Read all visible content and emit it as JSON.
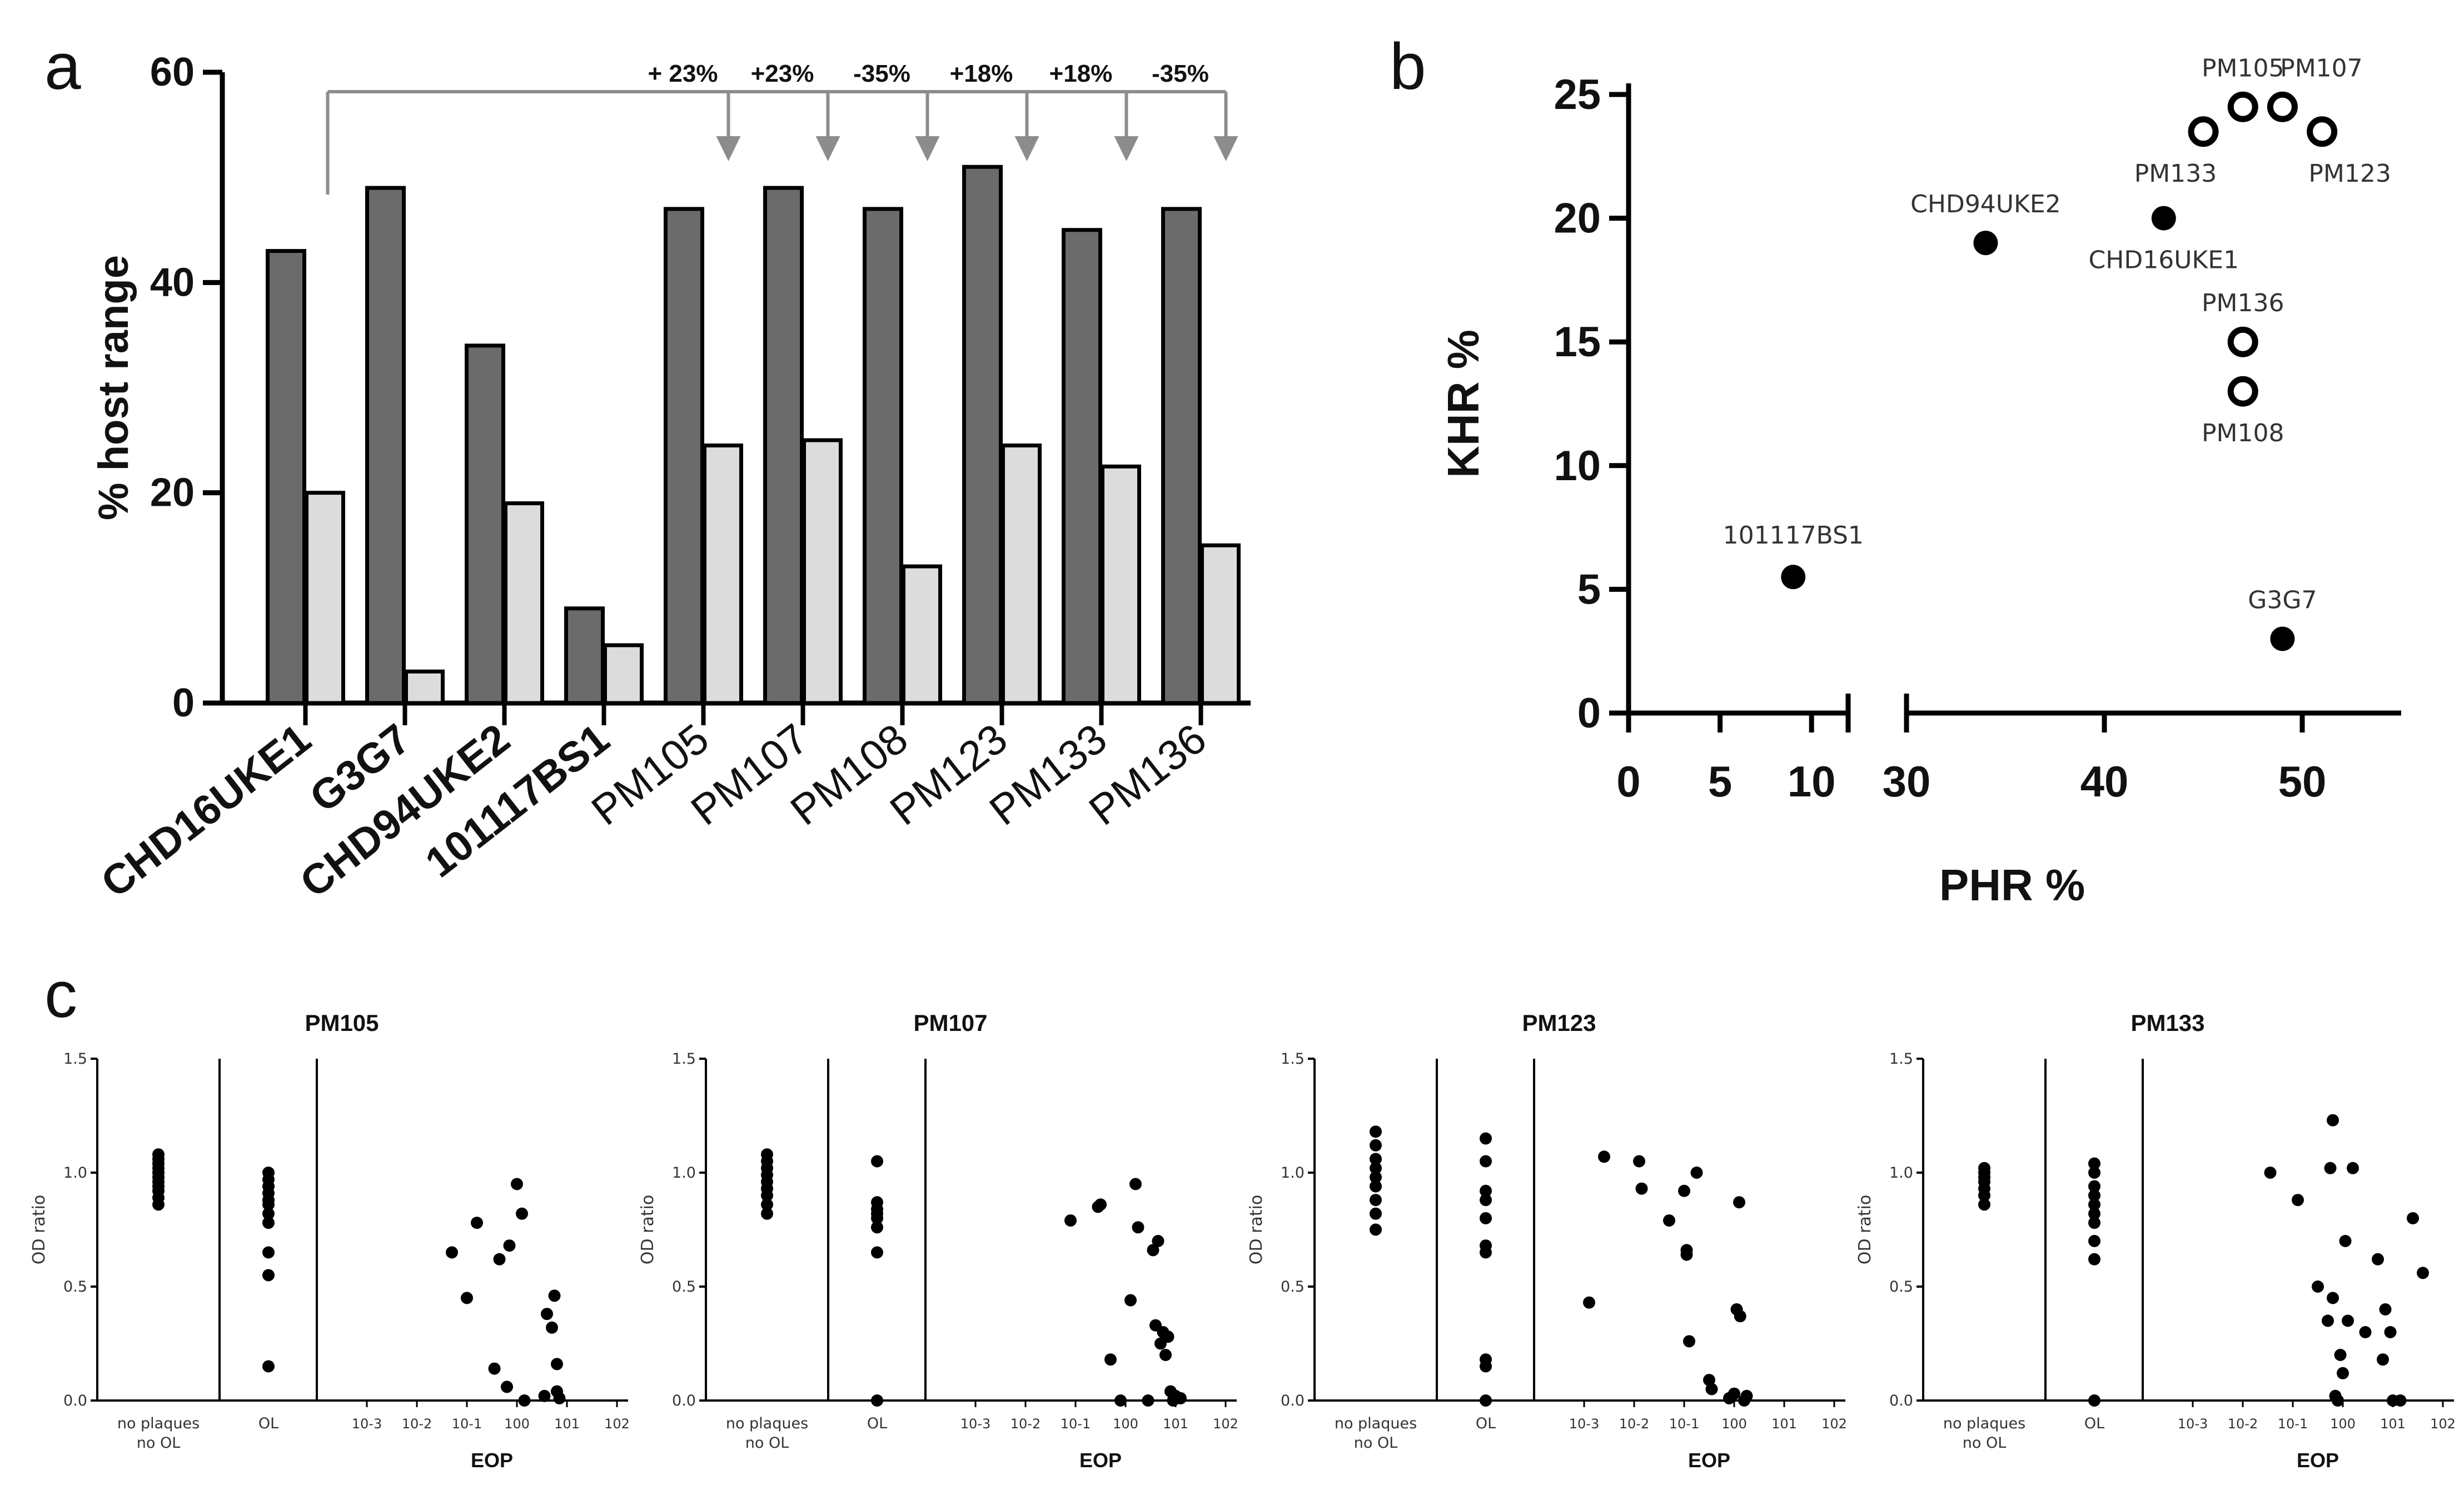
{
  "panel_labels": {
    "a": "a",
    "b": "b",
    "c": "c"
  },
  "colors": {
    "dark_bar": "#6b6b6b",
    "light_bar": "#dcdcdc",
    "arrow": "#8c8c8c",
    "ink": "#000000"
  },
  "chart_data": [
    {
      "id": "a",
      "type": "bar",
      "ylabel": "% host range",
      "ylim": [
        0,
        60
      ],
      "yticks": [
        0,
        20,
        40,
        60
      ],
      "categories": [
        "CHD16UKE1",
        "G3G7",
        "CHD94UKE2",
        "101117BS1",
        "PM105",
        "PM107",
        "PM108",
        "PM123",
        "PM133",
        "PM136"
      ],
      "bold_categories": [
        "CHD16UKE1",
        "G3G7",
        "CHD94UKE2",
        "101117BS1"
      ],
      "series": [
        {
          "values": [
            43,
            49,
            34,
            9,
            47,
            49,
            47,
            51,
            45,
            47
          ]
        },
        {
          "values": [
            20,
            3,
            19,
            5.5,
            24.5,
            25,
            13,
            24.5,
            22.5,
            15
          ]
        }
      ],
      "annotations": [
        "+ 23%",
        "+23%",
        "-35%",
        "+18%",
        "+18%",
        "-35%"
      ]
    },
    {
      "id": "b",
      "type": "scatter",
      "xlabel": "PHR %",
      "ylabel": "KHR %",
      "xticks": [
        0,
        5,
        10,
        30,
        40,
        50
      ],
      "yticks": [
        0,
        5,
        10,
        15,
        20,
        25
      ],
      "x_axis_break": [
        12,
        30
      ],
      "points": [
        {
          "label": "CHD16UKE1",
          "x": 43,
          "y": 20,
          "filled": true
        },
        {
          "label": "CHD94UKE2",
          "x": 34,
          "y": 19,
          "filled": true
        },
        {
          "label": "101117BS1",
          "x": 9,
          "y": 5.5,
          "filled": true
        },
        {
          "label": "G3G7",
          "x": 49,
          "y": 3,
          "filled": true
        },
        {
          "label": "PM105",
          "x": 47,
          "y": 24.5,
          "filled": false
        },
        {
          "label": "PM107",
          "x": 49,
          "y": 24.5,
          "filled": false
        },
        {
          "label": "PM133",
          "x": 45,
          "y": 23.5,
          "filled": false
        },
        {
          "label": "PM123",
          "x": 51,
          "y": 23.5,
          "filled": false
        },
        {
          "label": "PM136",
          "x": 47,
          "y": 15,
          "filled": false
        },
        {
          "label": "PM108",
          "x": 47,
          "y": 13,
          "filled": false
        }
      ]
    },
    {
      "id": "c",
      "type": "scatter",
      "ylabel": "OD ratio",
      "xlabel": "EOP",
      "yticks": [
        "0.0",
        "0.5",
        "1.0",
        "1.5"
      ],
      "section_labels": [
        "no plaques\nno OL",
        "OL"
      ],
      "eop_ticks": [
        "10-3",
        "10-2",
        "10-1",
        "100",
        "101",
        "102"
      ],
      "panels": [
        {
          "title": "PM105",
          "no_plaques": [
            0.86,
            0.89,
            0.92,
            0.94,
            0.96,
            0.98,
            1.0,
            1.02,
            1.04,
            1.06,
            1.08
          ],
          "ol": [
            0.15,
            0.55,
            0.65,
            0.78,
            0.82,
            0.86,
            0.88,
            0.91,
            0.94,
            0.97,
            1.0
          ],
          "eop": [
            [
              -1.3,
              0.65
            ],
            [
              -1.0,
              0.45
            ],
            [
              -0.8,
              0.78
            ],
            [
              -0.45,
              0.14
            ],
            [
              -0.35,
              0.62
            ],
            [
              -0.2,
              0.06
            ],
            [
              -0.15,
              0.68
            ],
            [
              0.0,
              0.95
            ],
            [
              0.1,
              0.82
            ],
            [
              0.15,
              0.0
            ],
            [
              0.55,
              0.02
            ],
            [
              0.6,
              0.38
            ],
            [
              0.7,
              0.32
            ],
            [
              0.75,
              0.46
            ],
            [
              0.8,
              0.16
            ],
            [
              0.8,
              0.04
            ],
            [
              0.85,
              0.01
            ]
          ]
        },
        {
          "title": "PM107",
          "no_plaques": [
            0.82,
            0.86,
            0.9,
            0.93,
            0.96,
            0.99,
            1.02,
            1.05,
            1.08
          ],
          "ol": [
            0.0,
            0.65,
            0.76,
            0.8,
            0.82,
            0.84,
            0.87,
            1.05
          ],
          "eop": [
            [
              -1.1,
              0.79
            ],
            [
              -0.55,
              0.85
            ],
            [
              -0.5,
              0.86
            ],
            [
              -0.3,
              0.18
            ],
            [
              -0.1,
              0.0
            ],
            [
              0.1,
              0.44
            ],
            [
              0.2,
              0.95
            ],
            [
              0.25,
              0.76
            ],
            [
              0.45,
              0.0
            ],
            [
              0.55,
              0.66
            ],
            [
              0.6,
              0.33
            ],
            [
              0.65,
              0.7
            ],
            [
              0.7,
              0.25
            ],
            [
              0.75,
              0.3
            ],
            [
              0.8,
              0.2
            ],
            [
              0.85,
              0.28
            ],
            [
              0.9,
              0.04
            ],
            [
              0.95,
              0.0
            ],
            [
              1.0,
              0.02
            ],
            [
              1.1,
              0.01
            ]
          ]
        },
        {
          "title": "PM123",
          "no_plaques": [
            0.75,
            0.82,
            0.88,
            0.94,
            0.98,
            1.02,
            1.06,
            1.12,
            1.18
          ],
          "ol": [
            0.0,
            0.15,
            0.18,
            0.65,
            0.68,
            0.8,
            0.88,
            0.92,
            1.05,
            1.15
          ],
          "eop": [
            [
              -2.9,
              0.43
            ],
            [
              -2.6,
              1.07
            ],
            [
              -1.9,
              1.05
            ],
            [
              -1.85,
              0.93
            ],
            [
              -1.3,
              0.79
            ],
            [
              -1.0,
              0.92
            ],
            [
              -0.95,
              0.66
            ],
            [
              -0.95,
              0.64
            ],
            [
              -0.9,
              0.26
            ],
            [
              -0.75,
              1.0
            ],
            [
              -0.5,
              0.09
            ],
            [
              -0.45,
              0.05
            ],
            [
              -0.1,
              0.01
            ],
            [
              0.0,
              0.03
            ],
            [
              0.05,
              0.4
            ],
            [
              0.1,
              0.87
            ],
            [
              0.12,
              0.37
            ],
            [
              0.2,
              0.0
            ],
            [
              0.25,
              0.02
            ]
          ]
        },
        {
          "title": "PM133",
          "no_plaques": [
            0.86,
            0.9,
            0.93,
            0.96,
            0.98,
            1.0,
            1.02
          ],
          "ol": [
            0.0,
            0.62,
            0.7,
            0.78,
            0.82,
            0.86,
            0.9,
            0.94,
            1.0,
            1.04
          ],
          "eop": [
            [
              -1.45,
              1.0
            ],
            [
              -0.9,
              0.88
            ],
            [
              -0.5,
              0.5
            ],
            [
              -0.3,
              0.35
            ],
            [
              -0.25,
              1.02
            ],
            [
              -0.2,
              1.23
            ],
            [
              -0.2,
              0.45
            ],
            [
              -0.15,
              0.02
            ],
            [
              -0.1,
              0.0
            ],
            [
              -0.05,
              0.2
            ],
            [
              0.0,
              0.12
            ],
            [
              0.05,
              0.7
            ],
            [
              0.1,
              0.35
            ],
            [
              0.2,
              1.02
            ],
            [
              0.45,
              0.3
            ],
            [
              0.7,
              0.62
            ],
            [
              0.8,
              0.18
            ],
            [
              0.85,
              0.4
            ],
            [
              0.95,
              0.3
            ],
            [
              1.0,
              0.0
            ],
            [
              1.15,
              0.0
            ],
            [
              1.4,
              0.8
            ],
            [
              1.6,
              0.56
            ]
          ]
        }
      ]
    }
  ]
}
